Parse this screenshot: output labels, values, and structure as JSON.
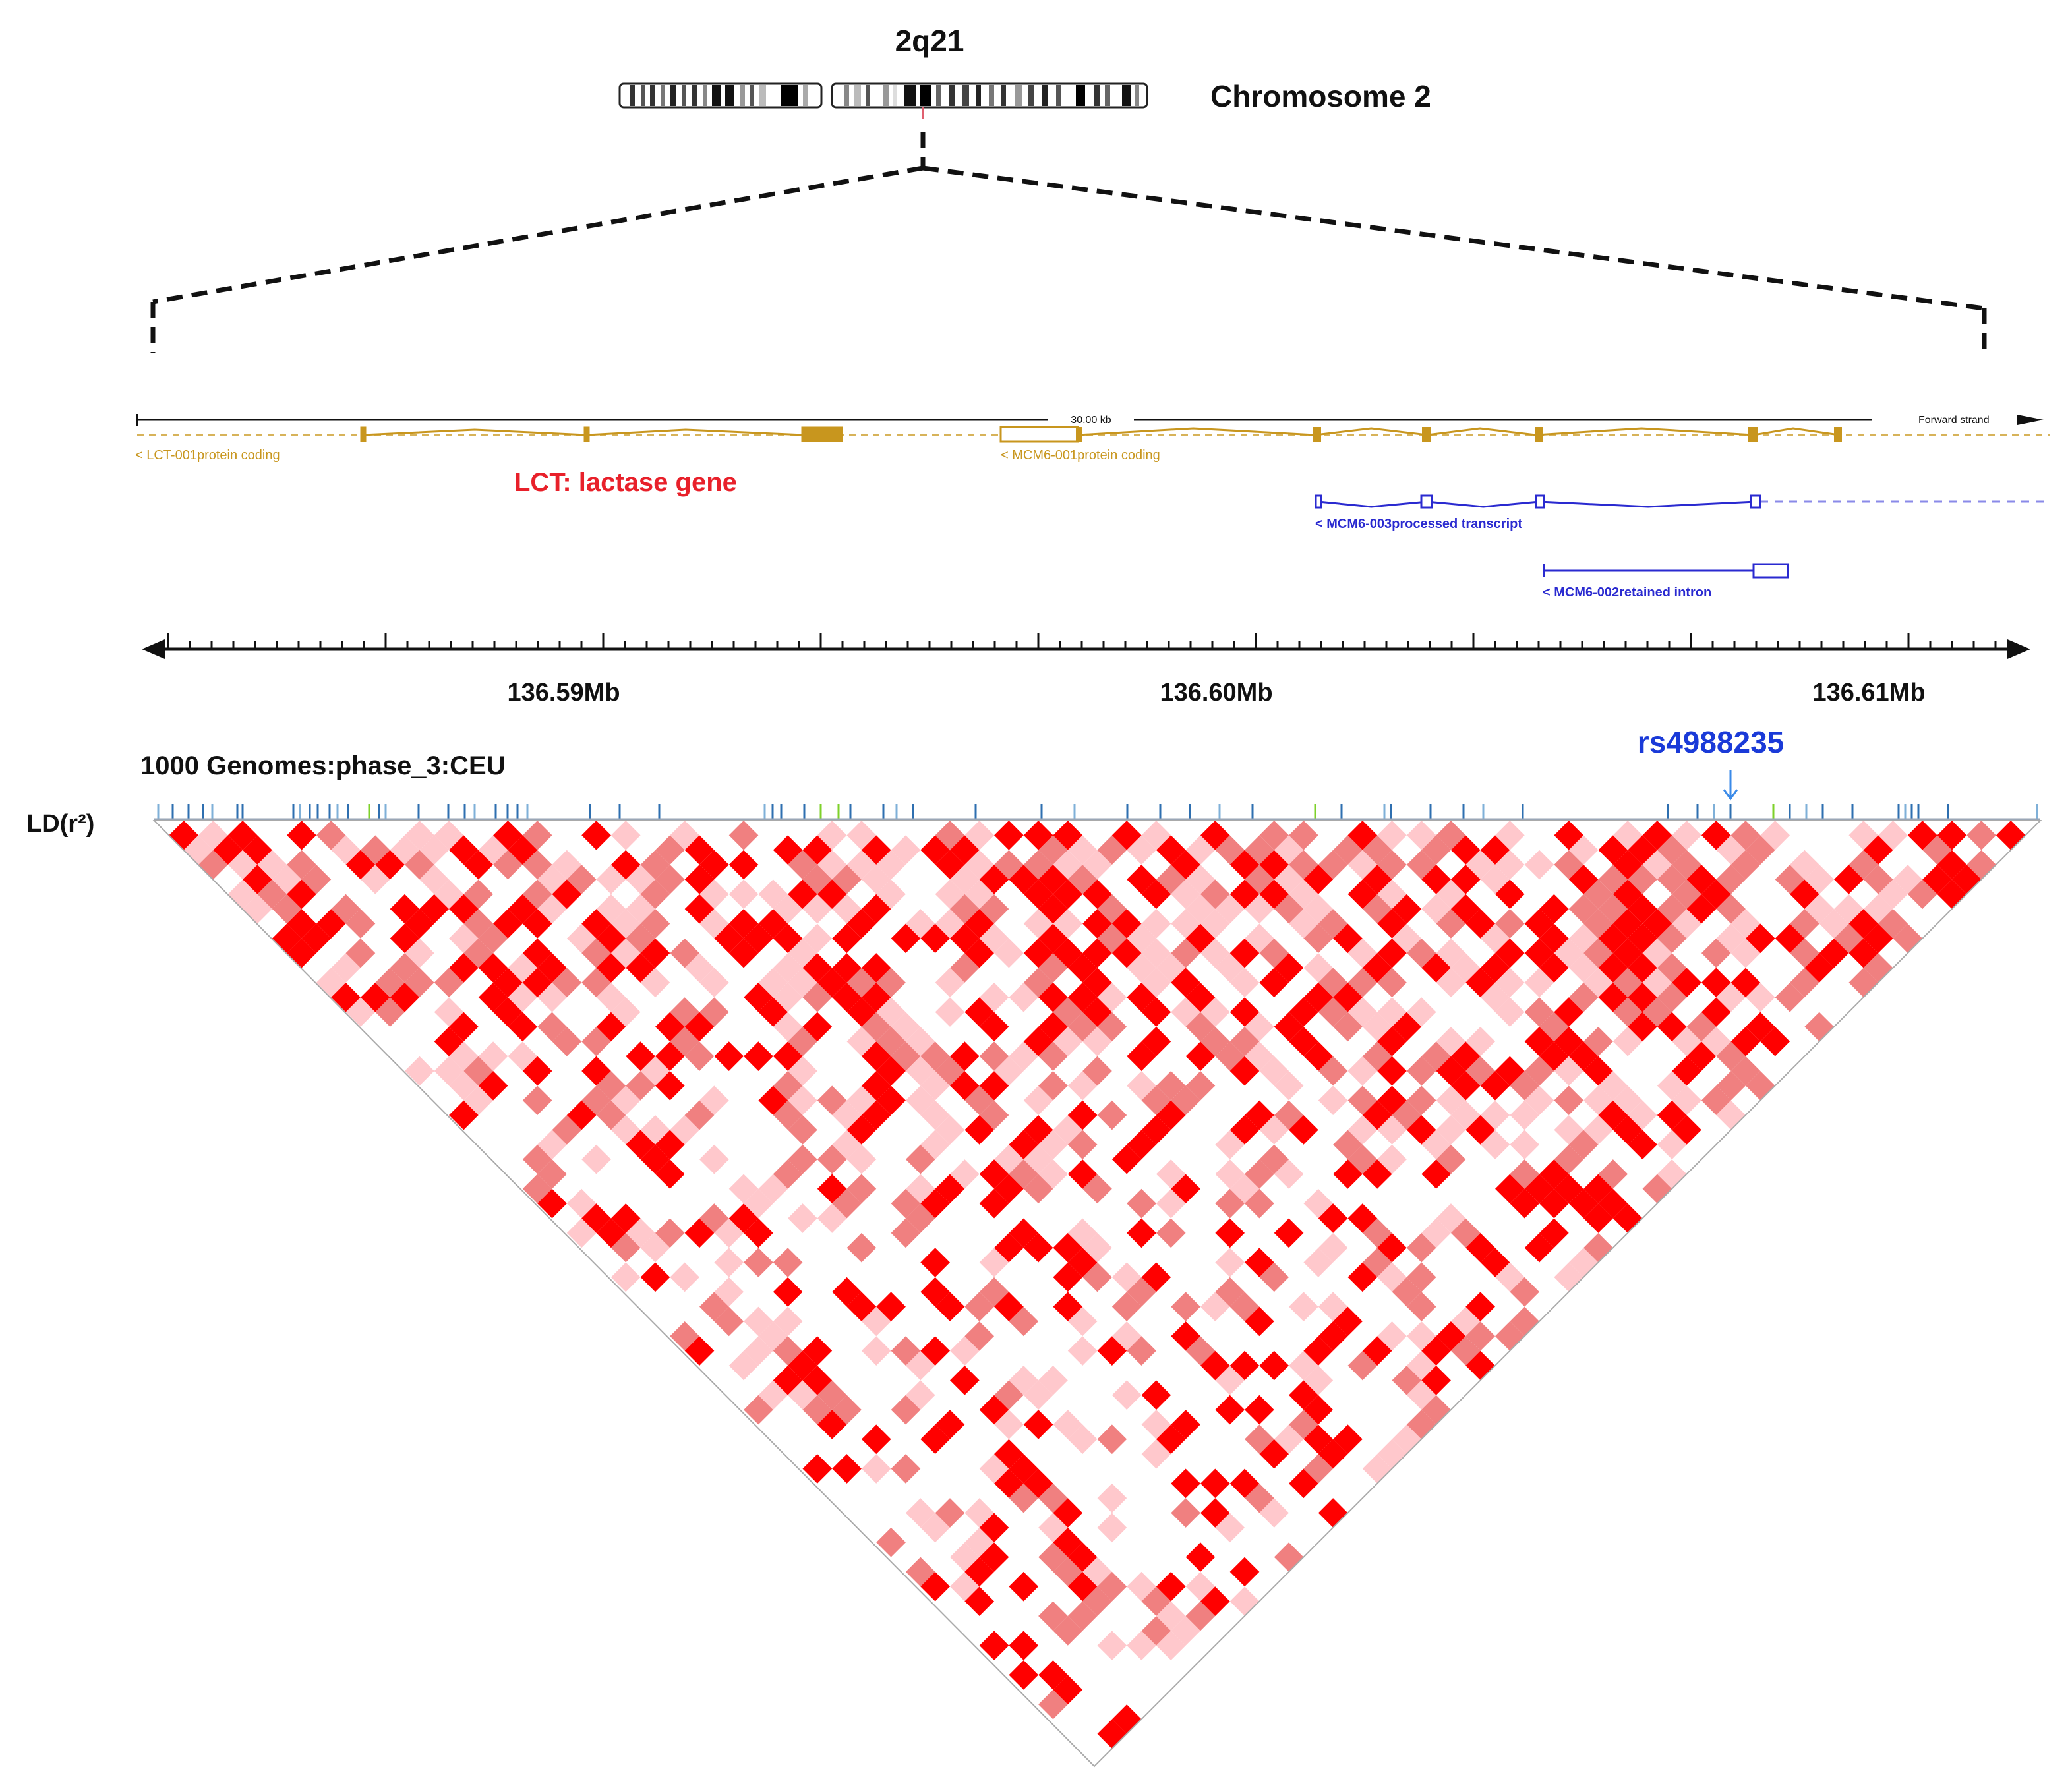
{
  "ideogram": {
    "band_label": "2q21",
    "chromosome_label": "Chromosome 2"
  },
  "gene_track": {
    "scale_label": "30.00 kb",
    "strand_label": "Forward strand",
    "gene_title": "LCT: lactase gene",
    "gene_title_color": "#e8202a",
    "transcripts": [
      {
        "label": "< LCT-001protein coding",
        "color": "#c8961e"
      },
      {
        "label": "< MCM6-001protein coding",
        "color": "#c8961e"
      },
      {
        "label": "< MCM6-003processed transcript",
        "color": "#2a2ad0"
      },
      {
        "label": "< MCM6-002retained intron",
        "color": "#2a2ad0"
      }
    ]
  },
  "axis": {
    "ticks": [
      "136.59Mb",
      "136.60Mb",
      "136.61Mb"
    ]
  },
  "ld_plot": {
    "population_label": "1000 Genomes:phase_3:CEU",
    "y_label": "LD(r²)",
    "highlight_snp": "rs4988235",
    "highlight_color": "#1a3ad8",
    "strong_color": "#ff0000",
    "medium_color": "#f08080",
    "weak_color": "#ffc8cc"
  }
}
